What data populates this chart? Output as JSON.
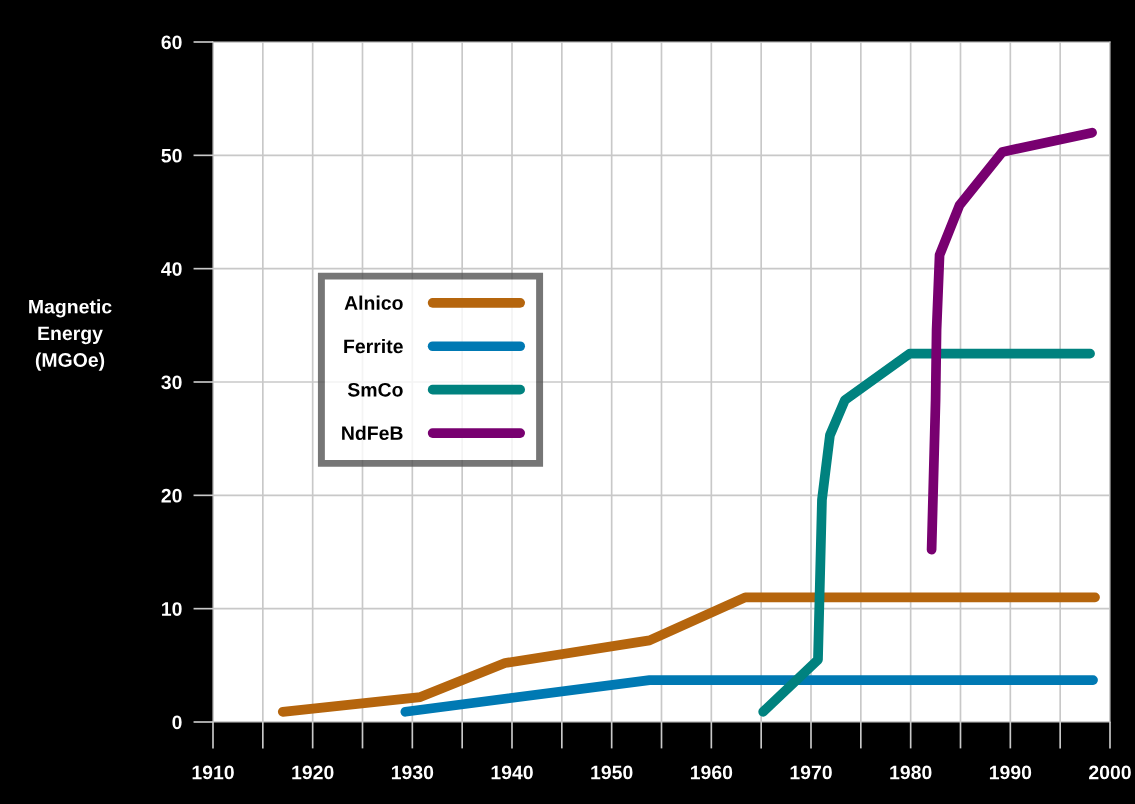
{
  "chart_data": {
    "type": "line",
    "ylabel": "Magnetic\nEnergy\n(MGOe)",
    "xlim": [
      1910,
      2000
    ],
    "xticks": [
      1910,
      {
        "value": 1915,
        "label": null
      },
      1920,
      {
        "value": 1925,
        "label": null
      },
      1930,
      {
        "value": 1935,
        "label": null
      },
      1940,
      {
        "value": 1945,
        "label": null
      },
      1950,
      {
        "value": 1955,
        "label": null
      },
      1960,
      {
        "value": 1965,
        "label": null
      },
      1970,
      {
        "value": 1975,
        "label": null
      },
      1980,
      {
        "value": 1985,
        "label": null
      },
      1990,
      {
        "value": 1995,
        "label": null
      },
      2000
    ],
    "ylim": [
      0,
      60
    ],
    "yticks": [
      0,
      10,
      20,
      30,
      40,
      50,
      60
    ],
    "grid": true,
    "legend": "top left",
    "marker": "none",
    "line_style": "solid",
    "series": [
      {
        "name": "Alnico",
        "color": "#b5650d",
        "x": [
          1917,
          1930.8,
          1939.3,
          1953.8,
          1963.4,
          1998.5
        ],
        "values": [
          0.9,
          2.2,
          5.2,
          7.2,
          11,
          11
        ]
      },
      {
        "name": "Ferrite",
        "color": "#0079b3",
        "x": [
          1929.3,
          1953.8,
          1998.3
        ],
        "values": [
          0.9,
          3.7,
          3.7
        ]
      },
      {
        "name": "SmCo",
        "color": "#00827f",
        "x": [
          1965.2,
          1970.7,
          1971.1,
          1971.9,
          1973.4,
          1979.9,
          1998
        ],
        "values": [
          0.9,
          5.5,
          19.6,
          25.3,
          28.4,
          32.5,
          32.5
        ]
      },
      {
        "name": "NdFeB",
        "color": "#780070",
        "x": [
          1982.1,
          1982.5,
          1982.6,
          1982.9,
          1984.9,
          1989.2,
          1998.2
        ],
        "values": [
          15.2,
          28.4,
          34.6,
          41.2,
          45.6,
          50.3,
          52
        ]
      }
    ]
  }
}
